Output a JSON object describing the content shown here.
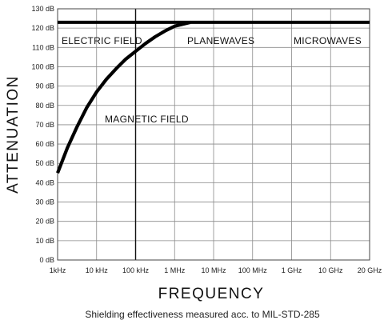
{
  "chart_data": {
    "type": "line",
    "title": "",
    "xlabel": "FREQUENCY",
    "ylabel": "ATTENUATION",
    "caption": "Shielding effectiveness measured acc. to MIL-STD-285",
    "x_scale": "log",
    "x_ticks": [
      "1kHz",
      "10 kHz",
      "100 kHz",
      "1 MHz",
      "10 MHz",
      "100 MHz",
      "1 GHz",
      "10 GHz",
      "20 GHz"
    ],
    "y_ticks": [
      "0 dB",
      "10 dB",
      "20 dB",
      "30 dB",
      "40 dB",
      "50 dB",
      "60 dB",
      "70 dB",
      "80 dB",
      "90 dB",
      "100 dB",
      "110 dB",
      "120 dB",
      "130 dB"
    ],
    "ylim": [
      0,
      130
    ],
    "grid": true,
    "region_labels": [
      "ELECTRIC FIELD",
      "PLANEWAVES",
      "MICROWAVES",
      "MAGNETIC FIELD"
    ],
    "series": [
      {
        "name": "ELECTRIC FIELD / PLANEWAVES / MICROWAVES",
        "x_index": [
          0,
          8
        ],
        "y": [
          123,
          123
        ]
      },
      {
        "name": "MAGNETIC FIELD",
        "x_index": [
          0,
          0.25,
          0.5,
          0.75,
          1.0,
          1.25,
          1.5,
          1.75,
          2.0,
          2.25,
          2.5,
          2.75,
          3.0,
          3.4
        ],
        "y": [
          45,
          58,
          69,
          79,
          87,
          93.5,
          99,
          104,
          108,
          112,
          115.5,
          118.5,
          121,
          123
        ]
      }
    ]
  }
}
